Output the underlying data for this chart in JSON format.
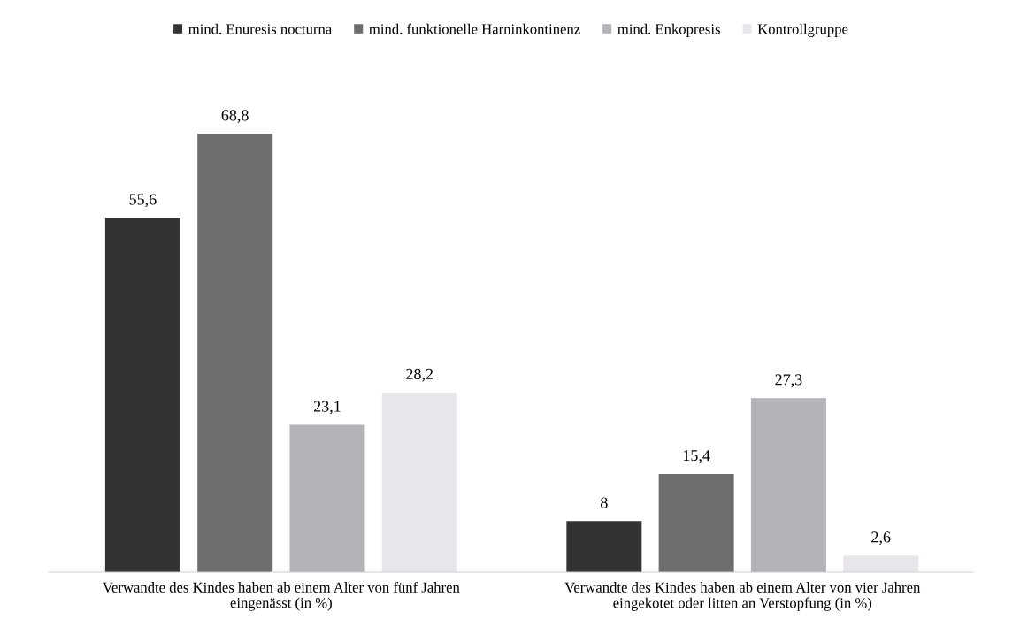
{
  "chart_data": {
    "type": "bar",
    "categories": [
      "Verwandte des Kindes haben ab einem Alter von fünf Jahren\neingenässt (in %)",
      "Verwandte des Kindes haben ab einem Alter von vier Jahren\neingekotet oder litten an Verstopfung (in %)"
    ],
    "series": [
      {
        "name": "mind. Enuresis nocturna",
        "color": "#333333",
        "values": [
          55.6,
          8
        ],
        "value_labels": [
          "55,6",
          "8"
        ]
      },
      {
        "name": "mind. funktionelle Harninkontinenz",
        "color": "#6e6e6e",
        "values": [
          68.8,
          15.4
        ],
        "value_labels": [
          "68,8",
          "15,4"
        ]
      },
      {
        "name": "mind. Enkopresis",
        "color": "#b3b3b8",
        "values": [
          23.1,
          27.3
        ],
        "value_labels": [
          "23,1",
          "27,3"
        ]
      },
      {
        "name": "Kontrollgruppe",
        "color": "#e8e6ea",
        "values": [
          28.2,
          2.6
        ],
        "value_labels": [
          "28,2",
          "2,6"
        ]
      }
    ],
    "legend": "top",
    "grid": false
  }
}
